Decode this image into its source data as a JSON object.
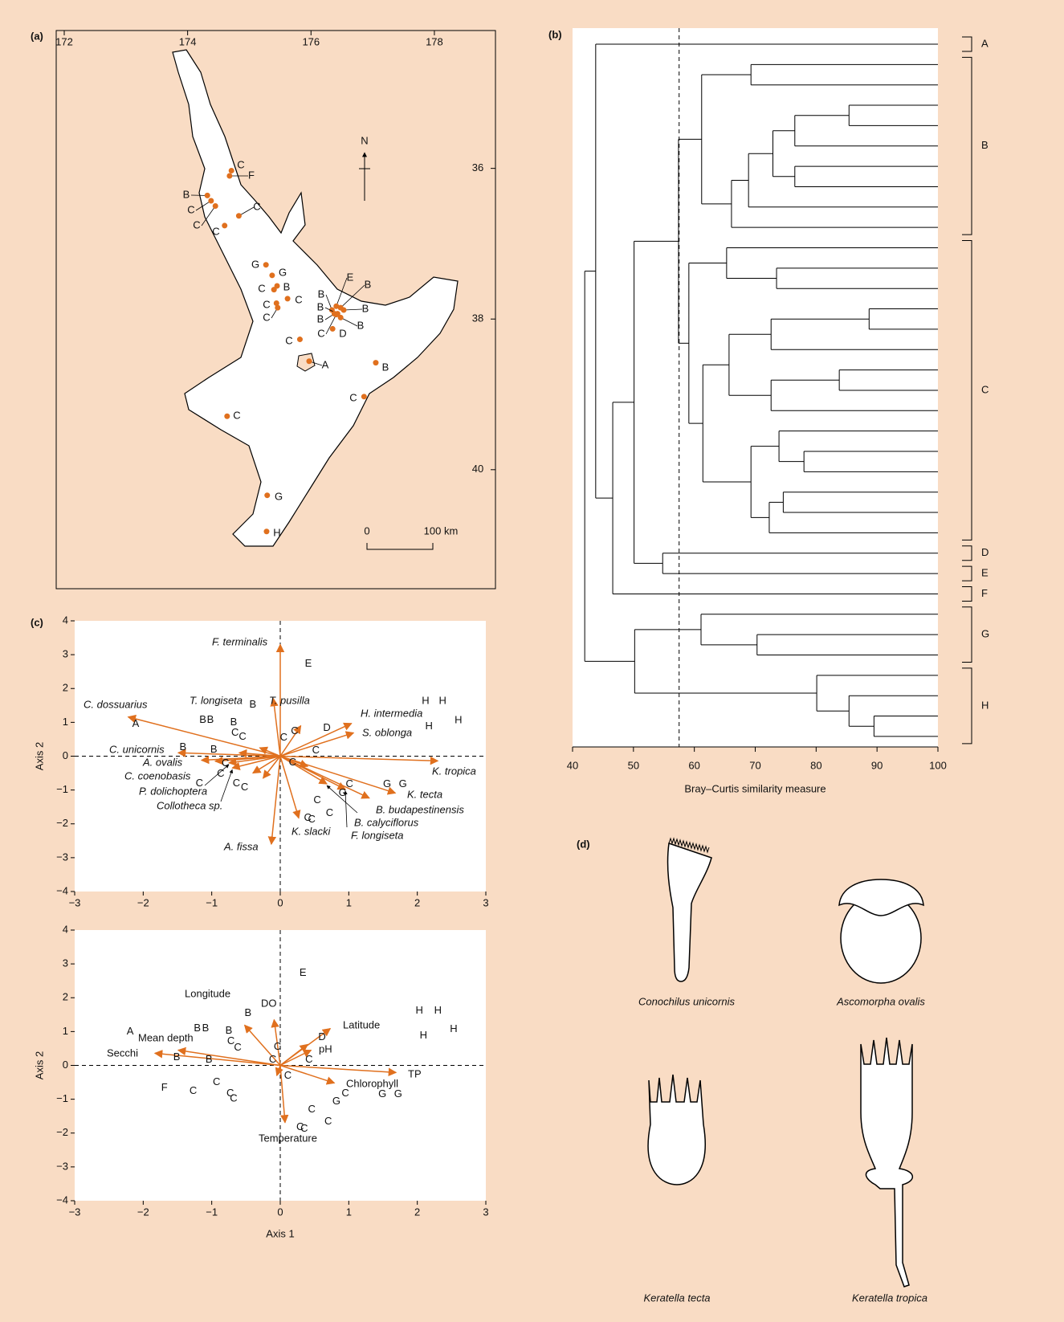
{
  "chart_data": [
    {
      "type": "map",
      "label": "(a)",
      "xlim": [
        171.87,
        178.99
      ],
      "xticks": [
        172,
        174,
        176,
        178
      ],
      "ylim": [
        34.17,
        41.58
      ],
      "yticks": [
        36,
        38,
        40
      ],
      "north": "N",
      "scale_bar": [
        "0",
        "100 km"
      ],
      "color": "#e0701e",
      "sites": {
        "labels": [
          "C",
          "F",
          "B",
          "C",
          "C",
          "C",
          "C",
          "G",
          "G",
          "C",
          "B",
          "C",
          "C",
          "C",
          "B",
          "E",
          "B",
          "B",
          "B",
          "B",
          "B",
          "D",
          "C",
          "C",
          "A",
          "B",
          "C",
          "C",
          "G",
          "H"
        ],
        "x": [
          174.71,
          174.68,
          174.32,
          174.38,
          174.45,
          174.83,
          174.6,
          175.27,
          175.37,
          175.4,
          175.45,
          175.44,
          175.46,
          175.62,
          176.34,
          176.41,
          176.48,
          176.53,
          176.43,
          176.38,
          176.48,
          176.35,
          176.41,
          175.82,
          175.97,
          177.05,
          176.86,
          174.64,
          175.29,
          175.28
        ],
        "y": [
          36.03,
          36.1,
          36.36,
          36.43,
          36.5,
          36.63,
          36.76,
          37.28,
          37.42,
          37.61,
          37.56,
          37.79,
          37.85,
          37.73,
          37.88,
          37.83,
          37.85,
          37.88,
          37.93,
          37.93,
          37.98,
          38.13,
          37.94,
          38.27,
          38.56,
          38.58,
          39.03,
          39.29,
          40.34,
          40.82
        ]
      }
    },
    {
      "type": "dendrogram",
      "label": "(b)",
      "xlabel": "Bray–Curtis similarity measure",
      "xlim": [
        40,
        100
      ],
      "xticks": [
        40,
        50,
        60,
        70,
        80,
        90,
        100
      ],
      "cut": 57.5,
      "groups": [
        "A",
        "B",
        "C",
        "D",
        "E",
        "F",
        "G",
        "H"
      ],
      "tree": {
        "similarity": 42.0,
        "children": [
          {
            "similarity": 43.8,
            "children": [
              null,
              {
                "similarity": 46.6,
                "children": [
                  {
                    "similarity": 50.1,
                    "children": [
                      {
                        "similarity": 57.4,
                        "children": [
                          {
                            "similarity": 61.2,
                            "children": [
                              {
                                "similarity": 69.3,
                                "children": [
                                  null,
                                  null
                                ]
                              },
                              {
                                "similarity": 66.1,
                                "children": [
                                  {
                                    "similarity": 68.9,
                                    "children": [
                                      {
                                        "similarity": 72.9,
                                        "children": [
                                          {
                                            "similarity": 76.5,
                                            "children": [
                                              {
                                                "similarity": 85.4,
                                                "children": [
                                                  null,
                                                  null
                                                ]
                                              },
                                              null
                                            ]
                                          },
                                          {
                                            "similarity": 76.5,
                                            "children": [
                                              null,
                                              null
                                            ]
                                          }
                                        ]
                                      },
                                      null
                                    ]
                                  },
                                  null
                                ]
                              }
                            ]
                          },
                          {
                            "similarity": 59.1,
                            "children": [
                              {
                                "similarity": 65.3,
                                "children": [
                                  null,
                                  {
                                    "similarity": 73.5,
                                    "children": [
                                      null,
                                      null
                                    ]
                                  }
                                ]
                              },
                              {
                                "similarity": 61.4,
                                "children": [
                                  {
                                    "similarity": 65.7,
                                    "children": [
                                      {
                                        "similarity": 72.6,
                                        "children": [
                                          {
                                            "similarity": 88.7,
                                            "children": [
                                              null,
                                              null
                                            ]
                                          },
                                          null
                                        ]
                                      },
                                      {
                                        "similarity": 72.6,
                                        "children": [
                                          {
                                            "similarity": 83.8,
                                            "children": [
                                              null,
                                              null
                                            ]
                                          },
                                          null
                                        ]
                                      }
                                    ]
                                  },
                                  {
                                    "similarity": 69.3,
                                    "children": [
                                      {
                                        "similarity": 73.9,
                                        "children": [
                                          null,
                                          {
                                            "similarity": 78.0,
                                            "children": [
                                              null,
                                              null
                                            ]
                                          }
                                        ]
                                      },
                                      {
                                        "similarity": 72.3,
                                        "children": [
                                          {
                                            "similarity": 74.6,
                                            "children": [
                                              null,
                                              null
                                            ]
                                          },
                                          null
                                        ]
                                      }
                                    ]
                                  }
                                ]
                              }
                            ]
                          }
                        ]
                      },
                      {
                        "similarity": 54.8,
                        "children": [
                          null,
                          null
                        ]
                      }
                    ]
                  },
                  null
                ]
              }
            ]
          },
          {
            "similarity": 50.2,
            "children": [
              {
                "similarity": 61.1,
                "children": [
                  null,
                  {
                    "similarity": 70.3,
                    "children": [
                      null,
                      null
                    ]
                  }
                ]
              },
              {
                "similarity": 80.1,
                "children": [
                  null,
                  {
                    "similarity": 85.4,
                    "children": [
                      null,
                      {
                        "similarity": 89.5,
                        "children": [
                          null,
                          null
                        ]
                      }
                    ]
                  }
                ]
              }
            ]
          }
        ]
      }
    },
    {
      "type": "biplot",
      "label": "(c)",
      "ylabel": "Axis 2",
      "xlim": [
        -3,
        3
      ],
      "ylim": [
        -4,
        4
      ],
      "color": "#e0701e",
      "xticks": [
        {
          "value": -3,
          "label": "−3"
        },
        {
          "value": -2,
          "label": "−2"
        },
        {
          "value": -1,
          "label": "−1"
        },
        0,
        1,
        2,
        3
      ],
      "yticks": [
        {
          "value": -4,
          "label": "−4"
        },
        {
          "value": -3,
          "label": "−3"
        },
        {
          "value": -2,
          "label": "−2"
        },
        {
          "value": -1,
          "label": "−1"
        },
        0,
        1,
        2,
        3,
        4
      ],
      "vectors": {
        "names": [
          "F. terminalis",
          "C. dossuarius",
          "T. longiseta",
          "T. pusilla",
          "H. intermedia",
          "S. oblonga",
          "C. unicornis",
          "A. ovalis",
          "C. coenobasis",
          "P. dolichoptera",
          "Collotheca sp.",
          "K. tropica",
          "K. tecta",
          "B. budapestinensis",
          "B. calyciflorus",
          "F. longiseta",
          "K. slacki",
          "A. fissa",
          null,
          null,
          null,
          null,
          null
        ],
        "x": [
          0,
          -2.22,
          -0.3,
          -0.1,
          1.04,
          1.07,
          -1.49,
          -1.15,
          -0.95,
          -0.75,
          -0.7,
          2.3,
          1.68,
          1.3,
          0.68,
          0.95,
          0.27,
          -0.13,
          -0.4,
          -0.25,
          0.3,
          -0.6,
          0.4
        ],
        "y": [
          3.3,
          1.16,
          0.25,
          1.7,
          0.97,
          0.69,
          0.1,
          -0.12,
          -0.15,
          -0.2,
          -0.35,
          -0.14,
          -1.09,
          -1.24,
          -0.82,
          -0.98,
          -1.83,
          -2.6,
          -0.5,
          -0.65,
          0.9,
          0.1,
          -0.3
        ]
      },
      "sites": {
        "labels": [
          "E",
          "H",
          "H",
          "H",
          "H",
          "A",
          "B",
          "B",
          "B",
          "B",
          "C",
          "C",
          "B",
          "B",
          "C",
          "C",
          "C",
          "C",
          "C",
          "C",
          "C",
          "D",
          "C",
          "C",
          "C",
          "G",
          "G",
          "G",
          "C",
          "C",
          "C",
          "C"
        ],
        "x": [
          0.41,
          2.12,
          2.37,
          2.6,
          2.17,
          -2.11,
          -1.13,
          -1.02,
          -0.68,
          -0.4,
          -0.66,
          -0.55,
          -1.42,
          -0.97,
          -0.8,
          -0.87,
          -1.18,
          -0.64,
          -0.52,
          0.05,
          0.21,
          0.68,
          0.52,
          0.18,
          1.01,
          0.91,
          1.56,
          1.79,
          0.54,
          0.72,
          0.4,
          0.46
        ],
        "y": [
          2.73,
          1.62,
          1.62,
          1.05,
          0.88,
          0.95,
          1.07,
          1.07,
          1.0,
          1.52,
          0.69,
          0.57,
          0.26,
          0.19,
          -0.21,
          -0.52,
          -0.81,
          -0.81,
          -0.93,
          0.55,
          0.74,
          0.83,
          0.17,
          -0.19,
          -0.83,
          -1.09,
          -0.83,
          -0.83,
          -1.31,
          -1.69,
          -1.83,
          -1.88
        ]
      }
    },
    {
      "type": "biplot",
      "xlabel": "Axis 1",
      "ylabel": "Axis 2",
      "xlim": [
        -3,
        3
      ],
      "ylim": [
        -4,
        4
      ],
      "color": "#e0701e",
      "xticks": [
        {
          "value": -3,
          "label": "−3"
        },
        {
          "value": -2,
          "label": "−2"
        },
        {
          "value": -1,
          "label": "−1"
        },
        0,
        1,
        2,
        3
      ],
      "yticks": [
        {
          "value": -4,
          "label": "−4"
        },
        {
          "value": -3,
          "label": "−3"
        },
        {
          "value": -2,
          "label": "−2"
        },
        {
          "value": -1,
          "label": "−1"
        },
        0,
        1,
        2,
        3,
        4
      ],
      "vectors": {
        "names": [
          "DO",
          "Longitude",
          "Mean depth",
          "Secchi",
          "Latitude",
          "pH",
          "TP",
          "Chlorophyll",
          "Temperature",
          null,
          null
        ],
        "x": [
          -0.09,
          -0.52,
          -1.49,
          -1.83,
          0.73,
          0.4,
          1.69,
          0.79,
          0.07,
          0.45,
          -0.05
        ],
        "y": [
          1.35,
          1.19,
          0.45,
          0.36,
          1.09,
          0.62,
          -0.21,
          -0.52,
          -1.69,
          0.45,
          -0.3
        ]
      },
      "sites": {
        "labels": [
          "E",
          "H",
          "H",
          "H",
          "H",
          "A",
          "B",
          "B",
          "B",
          "B",
          "C",
          "C",
          "B",
          "B",
          "F",
          "C",
          "C",
          "C",
          "C",
          "C",
          "C",
          "C",
          "C",
          "D",
          "C",
          "G",
          "G",
          "G",
          "C",
          "C",
          "C",
          "C"
        ],
        "x": [
          0.33,
          2.03,
          2.3,
          2.53,
          2.09,
          -2.19,
          -1.21,
          -1.09,
          -0.75,
          -0.47,
          -0.72,
          -0.62,
          -1.51,
          -1.04,
          -1.69,
          -1.27,
          -0.93,
          -0.73,
          -0.68,
          -0.04,
          -0.11,
          0.11,
          0.42,
          0.61,
          0.95,
          0.82,
          1.49,
          1.72,
          0.46,
          0.7,
          0.29,
          0.35
        ],
        "y": [
          2.73,
          1.61,
          1.61,
          1.07,
          0.88,
          1.0,
          1.09,
          1.09,
          1.02,
          1.54,
          0.71,
          0.52,
          0.24,
          0.17,
          -0.67,
          -0.76,
          -0.5,
          -0.83,
          -0.99,
          0.55,
          0.17,
          -0.31,
          0.17,
          0.83,
          -0.83,
          -1.07,
          -0.86,
          -0.86,
          -1.31,
          -1.66,
          -1.83,
          -1.88
        ]
      }
    }
  ],
  "figure_d": {
    "label": "(d)",
    "captions": [
      "Conochilus unicornis",
      "Ascomorpha ovalis",
      "Keratella tecta",
      "Keratella tropica"
    ]
  }
}
